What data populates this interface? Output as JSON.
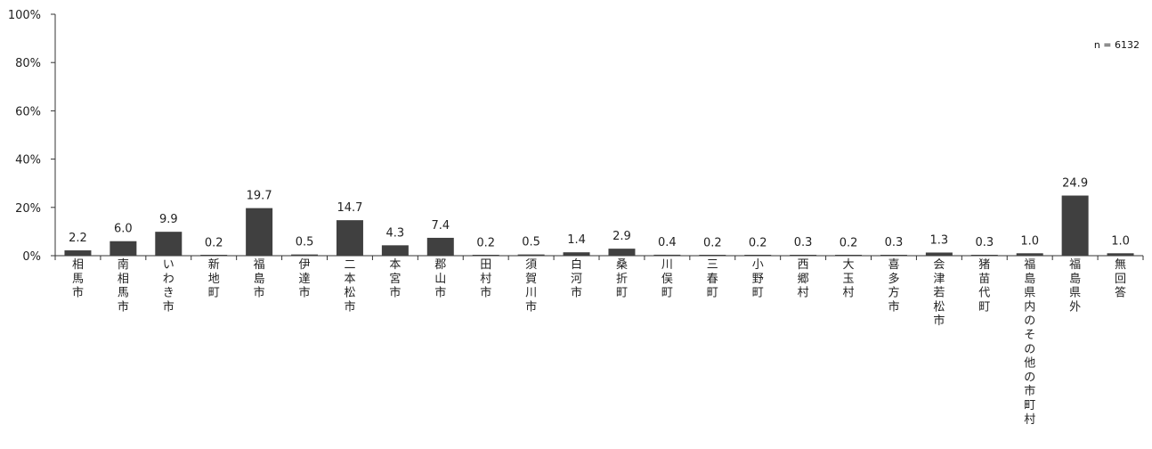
{
  "note": "n = 6132",
  "chart_data": {
    "type": "bar",
    "ylim": [
      0,
      100
    ],
    "y_ticks": [
      "0%",
      "20%",
      "40%",
      "60%",
      "80%",
      "100%"
    ],
    "y_tick_values": [
      0,
      20,
      40,
      60,
      80,
      100
    ],
    "bar_color": "#404040",
    "categories": [
      "相馬市",
      "南相馬市",
      "いわき市",
      "新地町",
      "福島市",
      "伊達市",
      "二本松市",
      "本宮市",
      "郡山市",
      "田村市",
      "須賀川市",
      "白河市",
      "桑折町",
      "川俣町",
      "三春町",
      "小野町",
      "西郷村",
      "大玉村",
      "喜多方市",
      "会津若松市",
      "猪苗代町",
      "福島県内のその他の市町村",
      "福島県外",
      "無回答"
    ],
    "values": [
      2.2,
      6.0,
      9.9,
      0.2,
      19.7,
      0.5,
      14.7,
      4.3,
      7.4,
      0.2,
      0.5,
      1.4,
      2.9,
      0.4,
      0.2,
      0.2,
      0.3,
      0.2,
      0.3,
      1.3,
      0.3,
      1.0,
      24.9,
      1.0
    ],
    "value_labels": [
      "2.2",
      "6.0",
      "9.9",
      "0.2",
      "19.7",
      "0.5",
      "14.7",
      "4.3",
      "7.4",
      "0.2",
      "0.5",
      "1.4",
      "2.9",
      "0.4",
      "0.2",
      "0.2",
      "0.3",
      "0.2",
      "0.3",
      "1.3",
      "0.3",
      "1.0",
      "24.9",
      "1.0"
    ]
  }
}
